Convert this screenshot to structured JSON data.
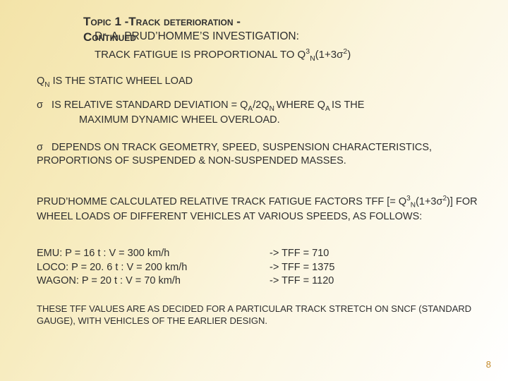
{
  "colors": {
    "bg_stops": [
      "#f3e3a8",
      "#f7ecc0",
      "#fbf5dd",
      "#ffffff"
    ],
    "text": "#2f2f2f",
    "pagenum": "#c48a2a"
  },
  "typography": {
    "base_family": "Verdana",
    "title_fontsize_pt": 13,
    "body_fontsize_pt": 11,
    "footnote_fontsize_pt": 10
  },
  "title": {
    "line1": "Topic 1 -Track deterioration -",
    "line2": "Continued"
  },
  "investigation_prefix": "Dr. A. PRUD’HOMME’S INVESTIGATION:",
  "fatigue": {
    "pre": "TRACK FATIGUE IS PROPORTIONAL TO Q",
    "sup1": "3",
    "sub1": "N",
    "mid": "(1+3σ",
    "sup2": "2",
    "post": ")"
  },
  "qn": {
    "pre": "Q",
    "sub": "N",
    "post": " IS THE STATIC WHEEL LOAD"
  },
  "sigma": {
    "line1_pre": "σ   IS RELATIVE STANDARD DEVIATION = Q",
    "line1_subA1": "A",
    "line1_mid": "/2Q",
    "line1_subN": "N ",
    "line1_where": "WHERE Q",
    "line1_subA2": "A ",
    "line1_end": "IS THE",
    "line2": "MAXIMUM DYNAMIC WHEEL OVERLOAD."
  },
  "depends": "σ   DEPENDS ON TRACK GEOMETRY, SPEED, SUSPENSION CHARACTERISTICS, PROPORTIONS  OF SUSPENDED & NON-SUSPENDED MASSES.",
  "calc": {
    "pre": "PRUD’HOMME CALCULATED RELATIVE TRACK FATIGUE FACTORS TFF [= Q",
    "sup1": "3",
    "sub1": "N",
    "mid": "(1+3σ",
    "sup2": "2",
    "post": ")] FOR WHEEL LOADS OF DIFFERENT VEHICLES AT VARIOUS SPEEDS, AS FOLLOWS:"
  },
  "tff": {
    "rows": [
      {
        "left": "EMU: P = 16 t : V = 300 km/h",
        "right": "-> TFF = 710"
      },
      {
        "left": "LOCO: P = 20. 6 t : V = 200 km/h",
        "right": "-> TFF = 1375"
      },
      {
        "left": "WAGON: P = 20 t : V = 70 km/h",
        "right": "-> TFF = 1120"
      }
    ]
  },
  "footnote": "THESE TFF VALUES ARE AS DECIDED FOR A PARTICULAR TRACK STRETCH ON SNCF (STANDARD GAUGE), WITH VEHICLES OF THE EARLIER DESIGN.",
  "pagenum": "8"
}
